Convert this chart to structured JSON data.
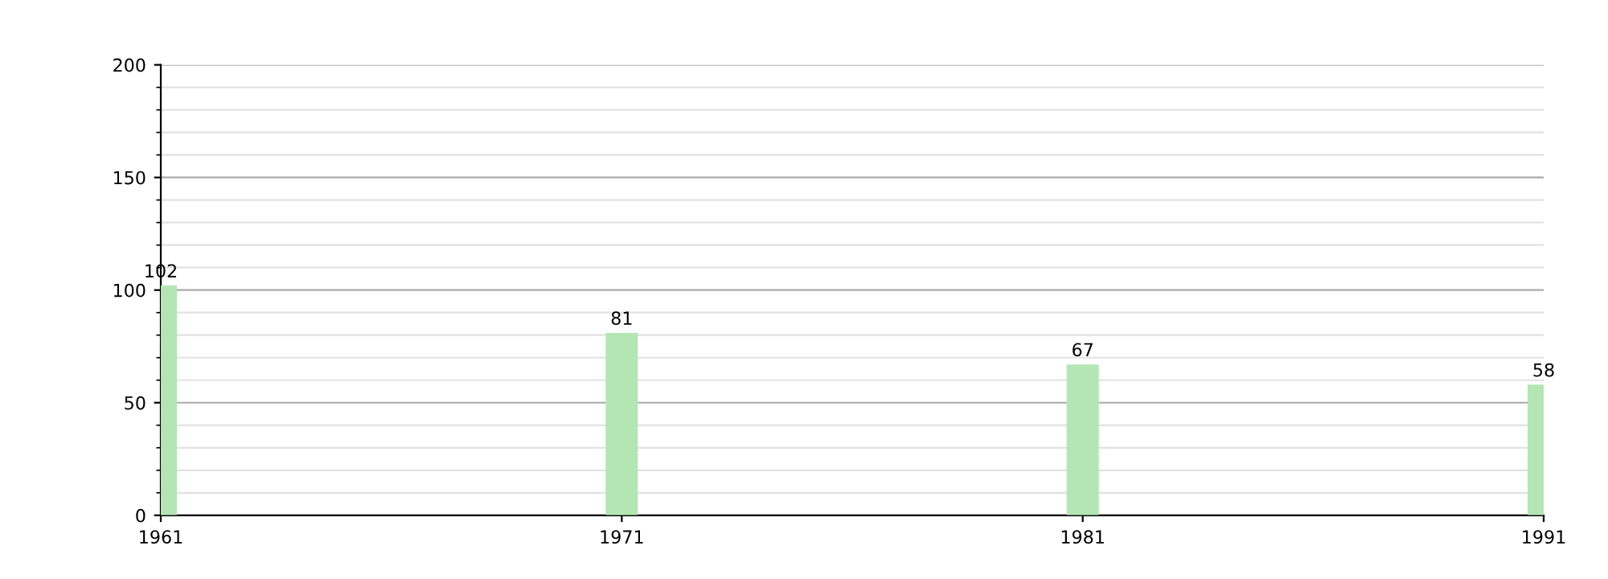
{
  "chart_data": {
    "type": "bar",
    "x": [
      1961,
      1971,
      1981,
      1991
    ],
    "values": [
      102,
      81,
      67,
      58
    ],
    "color": "#b3e6b3",
    "data_labels": true,
    "xlim": [
      1961,
      1991
    ],
    "xticks": [
      1961,
      1971,
      1981,
      1991
    ],
    "ylim": [
      0,
      200
    ],
    "yticks": [
      0,
      50,
      100,
      150,
      200
    ],
    "grid": "y"
  }
}
